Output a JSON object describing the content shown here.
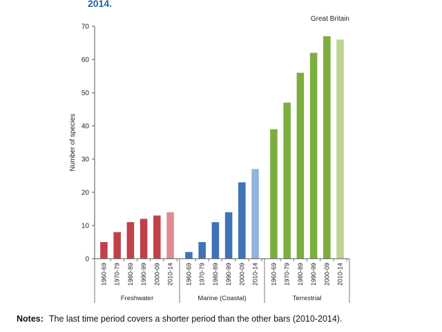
{
  "heading": "2014.",
  "notes": {
    "label": "Notes:",
    "text": "The last time period covers a shorter period than the other bars (2010-2014)."
  },
  "chart_data": {
    "type": "bar",
    "annotation": "Great Britain",
    "ylabel": "Number of species",
    "ylim": [
      0,
      70
    ],
    "yticks": [
      0,
      10,
      20,
      30,
      40,
      50,
      60,
      70
    ],
    "categories": [
      "1960-69",
      "1970-79",
      "1980-89",
      "1990-99",
      "2000-09",
      "2010-14"
    ],
    "groups": [
      {
        "name": "Freshwater",
        "values": [
          5,
          8,
          11,
          12,
          13,
          14
        ],
        "color": "#c0414a",
        "last_color": "#e08c93"
      },
      {
        "name": "Marine (Coastal)",
        "values": [
          2,
          5,
          11,
          14,
          23,
          27
        ],
        "color": "#3f73b8",
        "last_color": "#93b4dc"
      },
      {
        "name": "Terrestrial",
        "values": [
          39,
          47,
          56,
          62,
          67,
          66
        ],
        "color": "#7dae3d",
        "last_color": "#bcd68f"
      }
    ]
  }
}
